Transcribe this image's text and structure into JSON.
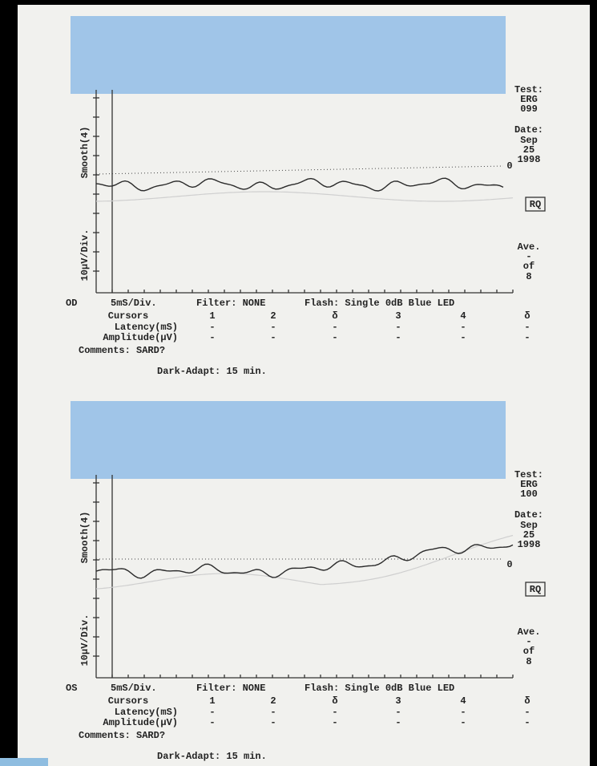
{
  "panels": [
    {
      "eye": "OD",
      "x_scale": "5mS/Div.",
      "y_scale": "10µV/Div.",
      "smooth": "Smooth(4)",
      "test_label": "Test:",
      "test_name": "ERG",
      "test_number": "099",
      "date_label": "Date:",
      "date_month": "Sep",
      "date_day": "25",
      "date_year": "1998",
      "zero_marker": "0",
      "button": "RQ",
      "ave": "Ave.",
      "ave_dash": "-",
      "ave_of": "of",
      "ave_count": "8",
      "filter": "Filter: NONE",
      "flash": "Flash: Single 0dB Blue LED",
      "cursor_table": {
        "header": [
          "Cursors",
          "1",
          "2",
          "δ",
          "3",
          "4",
          "δ"
        ],
        "rows": [
          [
            "Latency(mS)",
            "-",
            "-",
            "-",
            "-",
            "-",
            "-"
          ],
          [
            "Amplitude(µV)",
            "-",
            "-",
            "-",
            "-",
            "-",
            "-"
          ]
        ]
      },
      "comments": "Comments: SARD?",
      "dark_adapt": "Dark-Adapt: 15 min."
    },
    {
      "eye": "OS",
      "x_scale": "5mS/Div.",
      "y_scale": "10µV/Div.",
      "smooth": "Smooth(4)",
      "test_label": "Test:",
      "test_name": "ERG",
      "test_number": "100",
      "date_label": "Date:",
      "date_month": "Sep",
      "date_day": "25",
      "date_year": "1998",
      "zero_marker": "0",
      "button": "RQ",
      "ave": "Ave.",
      "ave_dash": "-",
      "ave_of": "of",
      "ave_count": "8",
      "filter": "Filter: NONE",
      "flash": "Flash: Single 0dB Blue LED",
      "cursor_table": {
        "header": [
          "Cursors",
          "1",
          "2",
          "δ",
          "3",
          "4",
          "δ"
        ],
        "rows": [
          [
            "Latency(mS)",
            "-",
            "-",
            "-",
            "-",
            "-",
            "-"
          ],
          [
            "Amplitude(µV)",
            "-",
            "-",
            "-",
            "-",
            "-",
            "-"
          ]
        ]
      },
      "comments": "Comments: SARD?",
      "dark_adapt": "Dark-Adapt: 15 min."
    }
  ]
}
